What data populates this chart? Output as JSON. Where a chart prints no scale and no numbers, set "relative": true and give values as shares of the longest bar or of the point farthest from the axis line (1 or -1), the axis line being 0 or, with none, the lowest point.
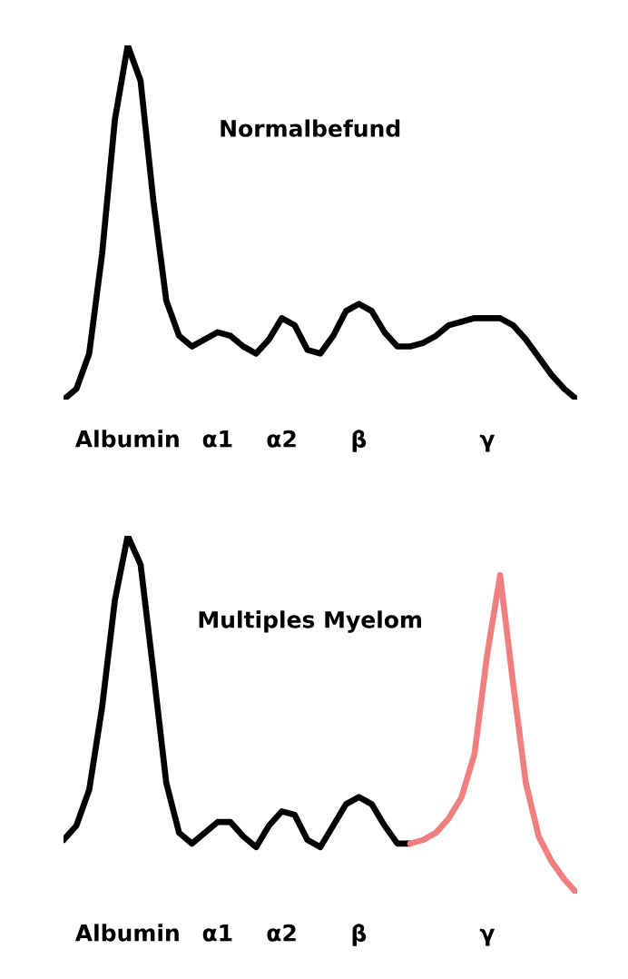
{
  "chart_data": [
    {
      "type": "line",
      "title": "Normalbefund",
      "relative": true,
      "tick_labels": "x",
      "legend": false,
      "grid": false,
      "marker": "none",
      "line_style": "solid",
      "categories": [
        null,
        null,
        null,
        null,
        null,
        "Albumin",
        null,
        null,
        null,
        null,
        null,
        null,
        "α1",
        null,
        null,
        null,
        null,
        "α2",
        null,
        null,
        null,
        null,
        null,
        "β",
        null,
        null,
        null,
        null,
        null,
        null,
        null,
        null,
        null,
        "γ",
        null,
        null,
        null,
        null,
        null,
        null,
        null
      ],
      "series": [
        {
          "color": "#000000",
          "values": [
            0,
            0.03,
            0.13,
            0.41,
            0.79,
            1,
            0.9,
            0.56,
            0.28,
            0.18,
            0.15,
            0.17,
            0.19,
            0.18,
            0.15,
            0.13,
            0.17,
            0.23,
            0.21,
            0.14,
            0.13,
            0.18,
            0.25,
            0.27,
            0.25,
            0.19,
            0.15,
            0.15,
            0.16,
            0.18,
            0.21,
            0.22,
            0.23,
            0.23,
            0.23,
            0.21,
            0.17,
            0.12,
            0.07,
            0.03,
            0
          ]
        }
      ]
    },
    {
      "type": "line",
      "title": "Multiples Myelom",
      "relative": true,
      "tick_labels": "x",
      "legend": false,
      "grid": false,
      "marker": "none",
      "line_style": "solid",
      "categories": [
        null,
        null,
        null,
        null,
        null,
        "Albumin",
        null,
        null,
        null,
        null,
        null,
        null,
        "α1",
        null,
        null,
        null,
        null,
        "α2",
        null,
        null,
        null,
        null,
        null,
        "β",
        null,
        null,
        null,
        null,
        null,
        null,
        null,
        null,
        null,
        "γ",
        null,
        null,
        null,
        null,
        null,
        null,
        null
      ],
      "series": [
        {
          "color": "#000000",
          "values": [
            0.15,
            0.19,
            0.29,
            0.52,
            0.82,
            1,
            0.92,
            0.62,
            0.31,
            0.17,
            0.14,
            0.17,
            0.2,
            0.2,
            0.16,
            0.13,
            0.19,
            0.23,
            0.22,
            0.15,
            0.13,
            0.19,
            0.25,
            0.27,
            0.25,
            0.19,
            0.14,
            0.14,
            null,
            null,
            null,
            null,
            null,
            null,
            null,
            null,
            null,
            null,
            null,
            null,
            null
          ]
        },
        {
          "color": "#f08080",
          "values": [
            null,
            null,
            null,
            null,
            null,
            null,
            null,
            null,
            null,
            null,
            null,
            null,
            null,
            null,
            null,
            null,
            null,
            null,
            null,
            null,
            null,
            null,
            null,
            null,
            null,
            null,
            null,
            0.14,
            0.15,
            0.17,
            0.21,
            0.27,
            0.39,
            0.67,
            0.89,
            0.59,
            0.31,
            0.16,
            0.09,
            0.04,
            0
          ]
        }
      ]
    }
  ]
}
